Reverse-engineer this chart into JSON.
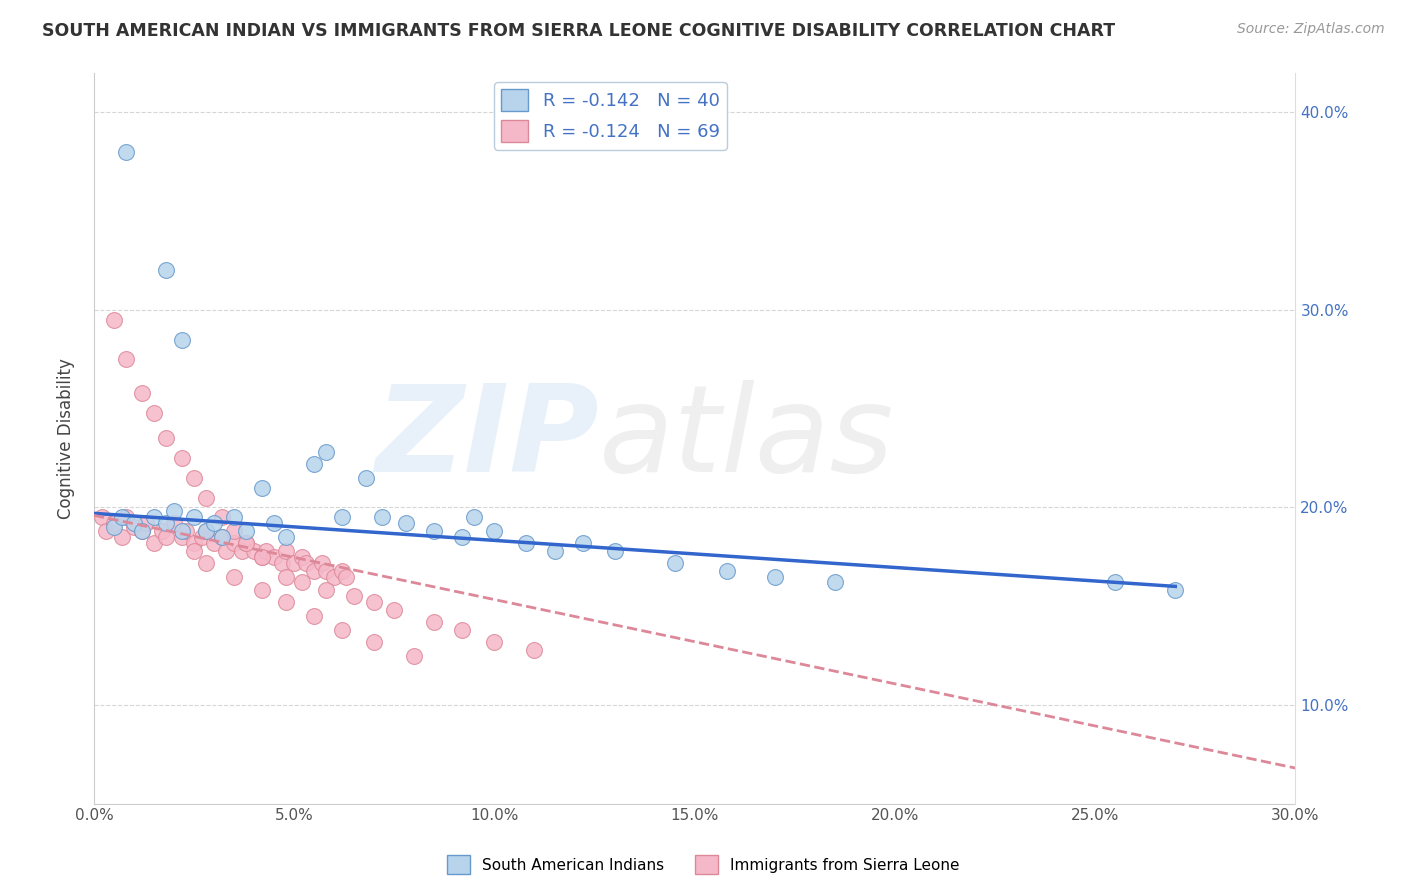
{
  "title": "SOUTH AMERICAN INDIAN VS IMMIGRANTS FROM SIERRA LEONE COGNITIVE DISABILITY CORRELATION CHART",
  "source": "Source: ZipAtlas.com",
  "ylabel_label": "Cognitive Disability",
  "series1_label": "South American Indians",
  "series2_label": "Immigrants from Sierra Leone",
  "series1_R": -0.142,
  "series1_N": 40,
  "series2_R": -0.124,
  "series2_N": 69,
  "series1_color": "#b8d4ec",
  "series2_color": "#f5b8c8",
  "series1_edge": "#6699cc",
  "series2_edge": "#dd8899",
  "trend1_color": "#3366cc",
  "trend2_color": "#dd8899",
  "background_color": "#ffffff",
  "xlim": [
    0.0,
    0.3
  ],
  "ylim": [
    0.05,
    0.42
  ],
  "x_ticks": [
    0.0,
    0.05,
    0.1,
    0.15,
    0.2,
    0.25,
    0.3
  ],
  "y_ticks": [
    0.1,
    0.2,
    0.3,
    0.4
  ],
  "series1_x": [
    0.008,
    0.018,
    0.022,
    0.005,
    0.007,
    0.01,
    0.012,
    0.015,
    0.018,
    0.02,
    0.022,
    0.025,
    0.028,
    0.03,
    0.032,
    0.035,
    0.038,
    0.042,
    0.045,
    0.048,
    0.055,
    0.058,
    0.062,
    0.068,
    0.072,
    0.078,
    0.085,
    0.092,
    0.095,
    0.1,
    0.108,
    0.115,
    0.122,
    0.13,
    0.145,
    0.158,
    0.17,
    0.185,
    0.255,
    0.27
  ],
  "series1_y": [
    0.38,
    0.32,
    0.285,
    0.19,
    0.195,
    0.192,
    0.188,
    0.195,
    0.192,
    0.198,
    0.188,
    0.195,
    0.188,
    0.192,
    0.185,
    0.195,
    0.188,
    0.21,
    0.192,
    0.185,
    0.222,
    0.228,
    0.195,
    0.215,
    0.195,
    0.192,
    0.188,
    0.185,
    0.195,
    0.188,
    0.182,
    0.178,
    0.182,
    0.178,
    0.172,
    0.168,
    0.165,
    0.162,
    0.162,
    0.158
  ],
  "series2_x": [
    0.002,
    0.003,
    0.005,
    0.007,
    0.008,
    0.01,
    0.012,
    0.013,
    0.015,
    0.017,
    0.018,
    0.02,
    0.022,
    0.023,
    0.025,
    0.027,
    0.028,
    0.03,
    0.032,
    0.033,
    0.035,
    0.037,
    0.038,
    0.04,
    0.042,
    0.043,
    0.045,
    0.047,
    0.048,
    0.05,
    0.052,
    0.053,
    0.055,
    0.057,
    0.058,
    0.06,
    0.062,
    0.063,
    0.005,
    0.008,
    0.012,
    0.015,
    0.018,
    0.022,
    0.025,
    0.028,
    0.032,
    0.035,
    0.038,
    0.042,
    0.048,
    0.052,
    0.058,
    0.065,
    0.07,
    0.075,
    0.085,
    0.092,
    0.1,
    0.11,
    0.025,
    0.028,
    0.035,
    0.042,
    0.048,
    0.055,
    0.062,
    0.07,
    0.08
  ],
  "series2_y": [
    0.195,
    0.188,
    0.192,
    0.185,
    0.195,
    0.19,
    0.188,
    0.192,
    0.182,
    0.188,
    0.185,
    0.192,
    0.185,
    0.188,
    0.182,
    0.185,
    0.188,
    0.182,
    0.185,
    0.178,
    0.182,
    0.178,
    0.182,
    0.178,
    0.175,
    0.178,
    0.175,
    0.172,
    0.178,
    0.172,
    0.175,
    0.172,
    0.168,
    0.172,
    0.168,
    0.165,
    0.168,
    0.165,
    0.295,
    0.275,
    0.258,
    0.248,
    0.235,
    0.225,
    0.215,
    0.205,
    0.195,
    0.188,
    0.182,
    0.175,
    0.165,
    0.162,
    0.158,
    0.155,
    0.152,
    0.148,
    0.142,
    0.138,
    0.132,
    0.128,
    0.178,
    0.172,
    0.165,
    0.158,
    0.152,
    0.145,
    0.138,
    0.132,
    0.125
  ],
  "trend1_x_start": 0.0,
  "trend1_x_end": 0.27,
  "trend1_y_start": 0.197,
  "trend1_y_end": 0.16,
  "trend2_x_start": 0.0,
  "trend2_x_end": 0.3,
  "trend2_y_start": 0.196,
  "trend2_y_end": 0.068
}
